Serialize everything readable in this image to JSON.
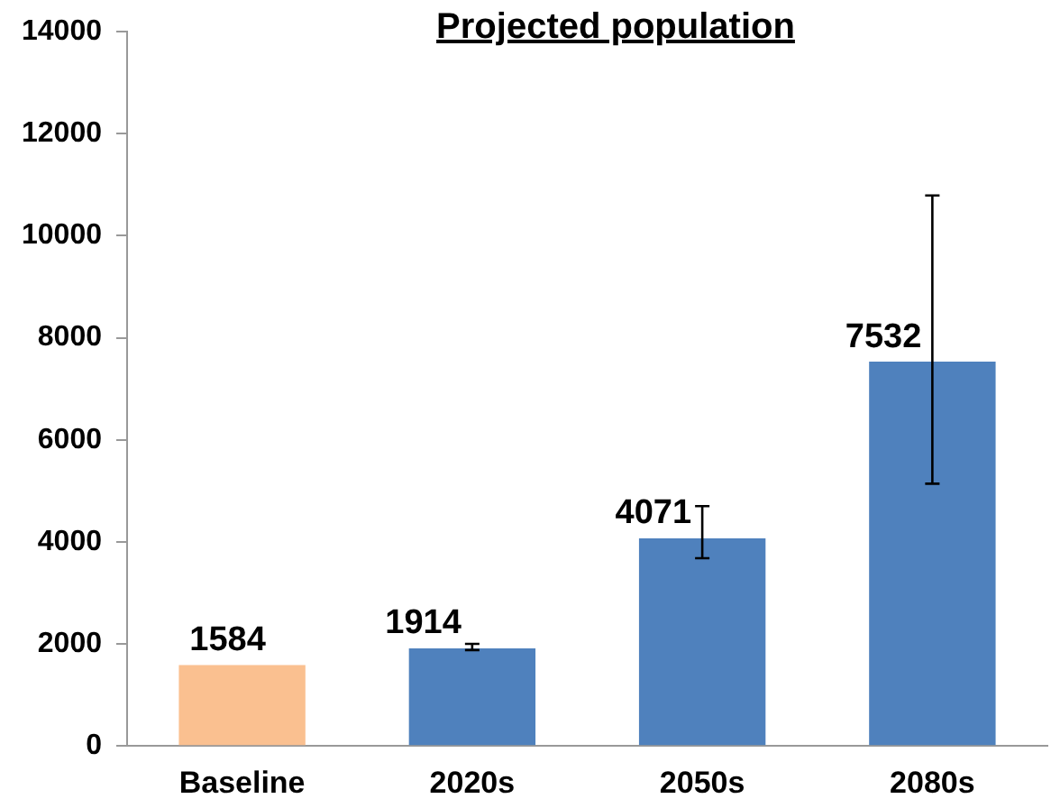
{
  "chart_data": {
    "type": "bar",
    "title": "Projected population",
    "categories": [
      "Baseline",
      "2020s",
      "2050s",
      "2080s"
    ],
    "values": [
      1584,
      1914,
      4071,
      7532
    ],
    "colors": [
      "#fac090",
      "#4f81bd",
      "#4f81bd",
      "#4f81bd"
    ],
    "errors": [
      null,
      [
        1880,
        2000
      ],
      [
        3680,
        4700
      ],
      [
        5140,
        10790
      ]
    ],
    "data_labels": true,
    "ylim": [
      0,
      14000
    ],
    "yticks": [
      0,
      2000,
      4000,
      6000,
      8000,
      10000,
      12000,
      14000
    ],
    "grid": false,
    "legend": false
  }
}
